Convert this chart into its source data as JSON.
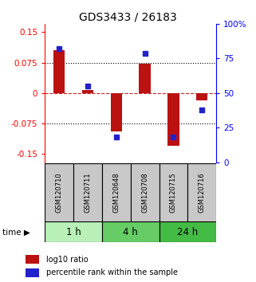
{
  "title": "GDS3433 / 26183",
  "samples": [
    "GSM120710",
    "GSM120711",
    "GSM120648",
    "GSM120708",
    "GSM120715",
    "GSM120716"
  ],
  "log10_ratio": [
    0.105,
    0.008,
    -0.095,
    0.073,
    -0.13,
    -0.018
  ],
  "percentile_rank": [
    82,
    55,
    18,
    79,
    18,
    38
  ],
  "time_groups": [
    {
      "label": "1 h",
      "samples": [
        0,
        1
      ],
      "color": "#b8f0b8"
    },
    {
      "label": "4 h",
      "samples": [
        2,
        3
      ],
      "color": "#66cc66"
    },
    {
      "label": "24 h",
      "samples": [
        4,
        5
      ],
      "color": "#44bb44"
    }
  ],
  "ylim_left": [
    -0.17,
    0.17
  ],
  "ylim_right": [
    0,
    100
  ],
  "yticks_left": [
    -0.15,
    -0.075,
    0,
    0.075,
    0.15
  ],
  "yticks_right": [
    0,
    25,
    50,
    75,
    100
  ],
  "bar_color": "#bb1111",
  "dot_color": "#2222cc",
  "zero_line_color": "#cc2222",
  "sample_box_color": "#c8c8c8",
  "background_color": "#ffffff"
}
